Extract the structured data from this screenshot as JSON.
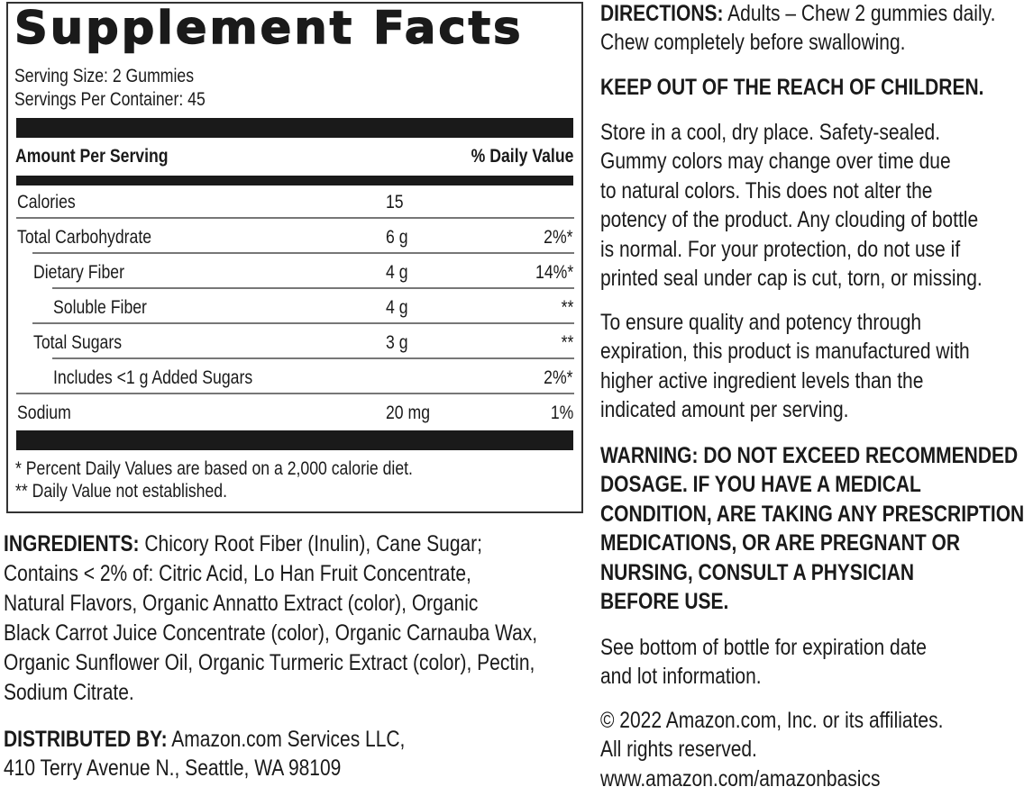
{
  "facts": {
    "title": "Supplement Facts",
    "serving_size": "Serving Size: 2 Gummies",
    "servings_per_container": "Servings Per Container: 45",
    "header_amount": "Amount Per Serving",
    "header_dv": "% Daily Value",
    "rows": [
      {
        "name": "Calories",
        "amount": "15",
        "dv": ""
      },
      {
        "name": "Total Carbohydrate",
        "amount": "6 g",
        "dv": "2%*"
      },
      {
        "name": "Dietary Fiber",
        "amount": "4 g",
        "dv": "14%*"
      },
      {
        "name": "Soluble Fiber",
        "amount": "4 g",
        "dv": "**"
      },
      {
        "name": "Total Sugars",
        "amount": "3 g",
        "dv": "**"
      },
      {
        "name": "Includes <1 g Added Sugars",
        "amount": "",
        "dv": "2%*"
      },
      {
        "name": "Sodium",
        "amount": "20 mg",
        "dv": "1%"
      }
    ],
    "footnote1": "* Percent Daily Values are based on a 2,000 calorie diet.",
    "footnote2": "** Daily Value not established."
  },
  "ingredients": {
    "label": "INGREDIENTS:",
    "lines": [
      " Chicory Root Fiber (Inulin), Cane Sugar;",
      "Contains < 2% of: Citric Acid, Lo Han Fruit Concentrate,",
      "Natural Flavors, Organic Annatto Extract (color), Organic",
      "Black Carrot Juice Concentrate (color), Organic Carnauba Wax,",
      "Organic Sunflower Oil, Organic Turmeric Extract (color), Pectin,",
      "Sodium Citrate."
    ]
  },
  "distributed": {
    "label": "DISTRIBUTED BY:",
    "lines": [
      " Amazon.com Services LLC,",
      "410 Terry Avenue N., Seattle, WA 98109"
    ]
  },
  "right": {
    "directions_label": "DIRECTIONS:",
    "directions": [
      " Adults – Chew 2 gummies daily.",
      "Chew completely before swallowing."
    ],
    "keep_out": "KEEP OUT OF THE REACH OF CHILDREN.",
    "storage": [
      "Store in a cool, dry place. Safety-sealed.",
      "Gummy colors may change over time due",
      "to natural colors. This does not alter the",
      "potency of the product. Any clouding of bottle",
      "is normal. For your protection, do not use if",
      "printed seal under cap is cut, torn, or missing."
    ],
    "quality": [
      "To ensure quality and potency through",
      "expiration, this product is manufactured with",
      "higher active ingredient levels than the",
      "indicated amount per serving."
    ],
    "warning": [
      "WARNING:  DO NOT EXCEED RECOMMENDED",
      "DOSAGE. IF YOU HAVE A MEDICAL",
      "CONDITION, ARE TAKING ANY PRESCRIPTION",
      "MEDICATIONS, OR ARE PREGNANT OR",
      "NURSING, CONSULT A PHYSICIAN",
      "BEFORE USE."
    ],
    "expiration": [
      "See bottom of bottle for expiration date",
      "and lot information."
    ],
    "copyright": [
      "© 2022 Amazon.com, Inc. or its affiliates.",
      "All rights reserved.",
      "www.amazon.com/amazonbasics"
    ]
  }
}
